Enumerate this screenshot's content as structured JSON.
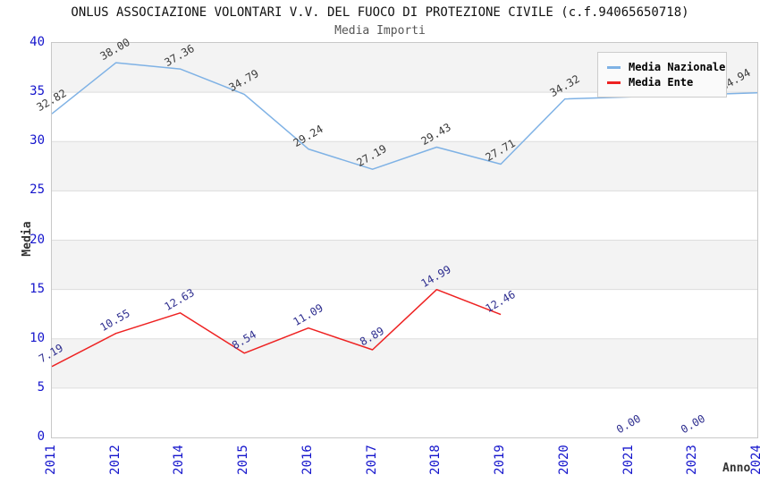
{
  "header": {
    "title": "ONLUS ASSOCIAZIONE VOLONTARI V.V. DEL FUOCO DI PROTEZIONE CIVILE (c.f.94065650718)",
    "subtitle": "Media Importi"
  },
  "chart_data": {
    "type": "line",
    "title": "ONLUS ASSOCIAZIONE VOLONTARI V.V. DEL FUOCO DI PROTEZIONE CIVILE (c.f.94065650718)",
    "subtitle": "Media Importi",
    "xlabel": "Anno",
    "ylabel": "Media",
    "ylim": [
      0,
      40
    ],
    "yticks": [
      0,
      5,
      10,
      15,
      20,
      25,
      30,
      35,
      40
    ],
    "grid": "horizontal-bands",
    "band_colors": [
      "#f3f3f3",
      "#ffffff"
    ],
    "gridline_color": "#dddddd",
    "axis_tick_color": "#1414cc",
    "legend_position": "top-right",
    "categories": [
      "2011",
      "2012",
      "2014",
      "2015",
      "2016",
      "2017",
      "2018",
      "2019",
      "2020",
      "2021",
      "2023",
      "2024"
    ],
    "series": [
      {
        "name": "Media Nazionale",
        "color": "#7fb2e5",
        "label_color": "#3a3a3a",
        "values": [
          32.82,
          38.0,
          37.36,
          34.79,
          29.24,
          27.19,
          29.43,
          27.71,
          34.32,
          null,
          null,
          34.94
        ],
        "line_points": [
          0,
          1,
          2,
          3,
          4,
          5,
          6,
          7,
          8,
          11
        ]
      },
      {
        "name": "Media Ente",
        "color": "#ee2222",
        "label_color": "#2e2e8f",
        "values": [
          7.19,
          10.55,
          12.63,
          8.54,
          11.09,
          8.89,
          14.99,
          12.46,
          null,
          0.0,
          0.0,
          null
        ],
        "line_points": [
          0,
          1,
          2,
          3,
          4,
          5,
          6,
          7
        ]
      }
    ]
  }
}
